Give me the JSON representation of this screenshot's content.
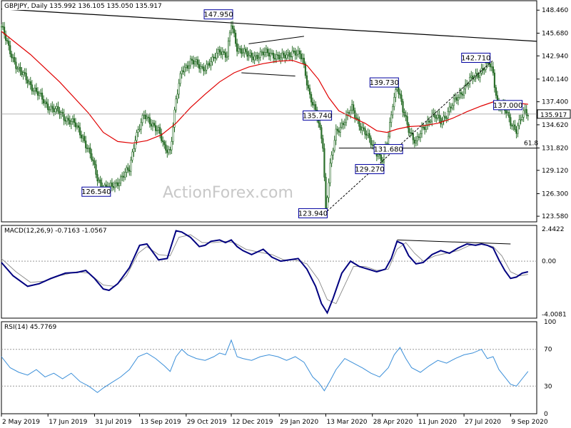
{
  "chart_data": [
    {
      "type": "candlestick",
      "title": "GBPJPY, Daily",
      "ohlc_readout": "135.992 136.105 135.050 135.917",
      "last_price": "135.917",
      "watermark": "ActionForex.com",
      "ylim": [
        122.9,
        149.6
      ],
      "y_ticks": [
        "148.460",
        "145.680",
        "142.940",
        "140.140",
        "137.400",
        "134.620",
        "131.820",
        "129.120",
        "126.300",
        "123.580"
      ],
      "x_ticks": [
        "2 May 2019",
        "17 Jun 2019",
        "31 Jul 2019",
        "13 Sep 2019",
        "29 Oct 2019",
        "12 Dec 2019",
        "29 Jan 2020",
        "13 Mar 2020",
        "28 Apr 2020",
        "11 Jun 2020",
        "27 Jul 2020",
        "9 Sep 2020"
      ],
      "x_tick_bar_index": [
        0,
        32,
        64,
        95,
        127,
        158,
        191,
        223,
        255,
        286,
        318,
        350
      ],
      "bar_count": 368,
      "price_points": [
        [
          0,
          146.5
        ],
        [
          5,
          143.8
        ],
        [
          12,
          141.2
        ],
        [
          20,
          139.5
        ],
        [
          30,
          137.2
        ],
        [
          40,
          136.0
        ],
        [
          50,
          134.7
        ],
        [
          56,
          133.2
        ],
        [
          62,
          130.5
        ],
        [
          66,
          128.2
        ],
        [
          70,
          127.1
        ],
        [
          74,
          126.9
        ],
        [
          79,
          127.6
        ],
        [
          84,
          128.5
        ],
        [
          88,
          129.2
        ],
        [
          92,
          133.2
        ],
        [
          98,
          135.6
        ],
        [
          104,
          134.8
        ],
        [
          108,
          133.8
        ],
        [
          112,
          131.8
        ],
        [
          116,
          131.6
        ],
        [
          120,
          137.5
        ],
        [
          124,
          141.2
        ],
        [
          130,
          142.3
        ],
        [
          138,
          141.5
        ],
        [
          145,
          142.2
        ],
        [
          150,
          143.8
        ],
        [
          155,
          142.9
        ],
        [
          158,
          146.7
        ],
        [
          162,
          144.0
        ],
        [
          166,
          143.5
        ],
        [
          170,
          142.8
        ],
        [
          178,
          143.1
        ],
        [
          185,
          143.3
        ],
        [
          192,
          142.6
        ],
        [
          200,
          143.5
        ],
        [
          207,
          142.6
        ],
        [
          212,
          138.2
        ],
        [
          217,
          135.5
        ],
        [
          221,
          132.3
        ],
        [
          223,
          124.5
        ],
        [
          226,
          129.6
        ],
        [
          230,
          133.6
        ],
        [
          236,
          135.3
        ],
        [
          241,
          136.5
        ],
        [
          246,
          134.8
        ],
        [
          252,
          133.0
        ],
        [
          258,
          131.4
        ],
        [
          262,
          130.2
        ],
        [
          266,
          133.2
        ],
        [
          269,
          137.4
        ],
        [
          272,
          139.4
        ],
        [
          276,
          136.2
        ],
        [
          280,
          134.2
        ],
        [
          285,
          132.4
        ],
        [
          290,
          134.2
        ],
        [
          296,
          135.8
        ],
        [
          302,
          135.0
        ],
        [
          308,
          136.5
        ],
        [
          314,
          138.0
        ],
        [
          320,
          139.6
        ],
        [
          326,
          140.5
        ],
        [
          330,
          141.3
        ],
        [
          335,
          142.0
        ],
        [
          338,
          140.8
        ],
        [
          341,
          137.2
        ],
        [
          345,
          136.7
        ],
        [
          350,
          134.9
        ],
        [
          354,
          134.1
        ],
        [
          357,
          135.3
        ],
        [
          360,
          136.1
        ],
        [
          362,
          135.9
        ]
      ],
      "ma_points": [
        [
          0,
          145.9
        ],
        [
          20,
          143.1
        ],
        [
          40,
          139.8
        ],
        [
          60,
          136.0
        ],
        [
          70,
          133.7
        ],
        [
          80,
          132.6
        ],
        [
          90,
          132.4
        ],
        [
          100,
          132.7
        ],
        [
          110,
          133.4
        ],
        [
          120,
          134.8
        ],
        [
          130,
          136.7
        ],
        [
          140,
          138.3
        ],
        [
          150,
          139.8
        ],
        [
          160,
          140.9
        ],
        [
          170,
          141.6
        ],
        [
          180,
          142.0
        ],
        [
          190,
          142.3
        ],
        [
          200,
          142.4
        ],
        [
          210,
          141.8
        ],
        [
          218,
          140.1
        ],
        [
          225,
          137.9
        ],
        [
          232,
          136.3
        ],
        [
          240,
          135.6
        ],
        [
          250,
          134.8
        ],
        [
          258,
          133.9
        ],
        [
          265,
          133.7
        ],
        [
          272,
          134.1
        ],
        [
          280,
          134.4
        ],
        [
          290,
          134.5
        ],
        [
          300,
          134.8
        ],
        [
          310,
          135.4
        ],
        [
          320,
          136.2
        ],
        [
          330,
          136.9
        ],
        [
          340,
          137.5
        ],
        [
          350,
          137.3
        ],
        [
          362,
          137.1
        ]
      ],
      "trendline_start": [
        0,
        148.6
      ],
      "trendline_end": [
        368,
        144.7
      ],
      "support_line": {
        "from_bar": 232,
        "to_bar": 368,
        "price": 131.8,
        "label": "61.8"
      },
      "swing_labels": [
        {
          "text": "147.950",
          "bar": 158,
          "price": 147.95,
          "pos": "left"
        },
        {
          "text": "126.540",
          "bar": 74,
          "price": 126.54,
          "pos": "left"
        },
        {
          "text": "123.940",
          "bar": 223,
          "price": 123.94,
          "pos": "left"
        },
        {
          "text": "135.740",
          "bar": 226,
          "price": 135.74,
          "pos": "left"
        },
        {
          "text": "139.730",
          "bar": 272,
          "price": 139.73,
          "pos": "left"
        },
        {
          "text": "129.270",
          "bar": 262,
          "price": 129.27,
          "pos": "left"
        },
        {
          "text": "131.680",
          "bar": 266,
          "price": 131.68,
          "pos": "center"
        },
        {
          "text": "142.710",
          "bar": 335,
          "price": 142.71,
          "pos": "left"
        },
        {
          "text": "137.000",
          "bar": 357,
          "price": 137.0,
          "pos": "left"
        }
      ],
      "channel_upper": [
        [
          170,
          144.4
        ],
        [
          208,
          145.3
        ]
      ],
      "channel_lower": [
        [
          165,
          140.9
        ],
        [
          202,
          140.5
        ]
      ],
      "dashed_channel_upper": [
        [
          287,
          135.2
        ],
        [
          338,
          142.4
        ]
      ],
      "dashed_channel_lower": [
        [
          224,
          124.2
        ],
        [
          262,
          129.4
        ]
      ]
    },
    {
      "type": "line",
      "title": "MACD(12,26,9) -0.7163 -1.0567",
      "ylim": [
        -4.3,
        2.7
      ],
      "y_ticks": [
        "2.4422",
        "0.00",
        "-4.0081"
      ],
      "macd_points": [
        [
          0,
          -0.1
        ],
        [
          8,
          -1.1
        ],
        [
          18,
          -1.9
        ],
        [
          26,
          -1.7
        ],
        [
          34,
          -1.3
        ],
        [
          44,
          -0.9
        ],
        [
          52,
          -0.85
        ],
        [
          58,
          -0.7
        ],
        [
          64,
          -1.3
        ],
        [
          70,
          -2.1
        ],
        [
          74,
          -2.2
        ],
        [
          80,
          -1.7
        ],
        [
          88,
          -0.5
        ],
        [
          95,
          1.2
        ],
        [
          100,
          1.3
        ],
        [
          108,
          0.1
        ],
        [
          114,
          0.2
        ],
        [
          120,
          2.3
        ],
        [
          124,
          2.2
        ],
        [
          130,
          1.8
        ],
        [
          136,
          1.1
        ],
        [
          140,
          1.2
        ],
        [
          144,
          1.5
        ],
        [
          150,
          1.6
        ],
        [
          154,
          1.4
        ],
        [
          158,
          1.6
        ],
        [
          162,
          1.1
        ],
        [
          166,
          0.8
        ],
        [
          172,
          0.5
        ],
        [
          180,
          0.9
        ],
        [
          186,
          0.3
        ],
        [
          192,
          0.0
        ],
        [
          198,
          0.1
        ],
        [
          204,
          0.2
        ],
        [
          210,
          -0.6
        ],
        [
          216,
          -1.9
        ],
        [
          220,
          -3.2
        ],
        [
          224,
          -3.9
        ],
        [
          228,
          -2.8
        ],
        [
          234,
          -0.9
        ],
        [
          240,
          0.0
        ],
        [
          246,
          -0.4
        ],
        [
          252,
          -0.6
        ],
        [
          258,
          -0.8
        ],
        [
          264,
          -0.6
        ],
        [
          268,
          0.2
        ],
        [
          272,
          1.5
        ],
        [
          276,
          1.3
        ],
        [
          280,
          0.4
        ],
        [
          285,
          -0.2
        ],
        [
          290,
          -0.1
        ],
        [
          296,
          0.5
        ],
        [
          302,
          0.8
        ],
        [
          308,
          0.6
        ],
        [
          314,
          1.0
        ],
        [
          320,
          1.3
        ],
        [
          326,
          1.2
        ],
        [
          330,
          1.3
        ],
        [
          334,
          1.2
        ],
        [
          338,
          1.0
        ],
        [
          342,
          0.1
        ],
        [
          346,
          -0.7
        ],
        [
          350,
          -1.3
        ],
        [
          354,
          -1.2
        ],
        [
          358,
          -0.9
        ],
        [
          362,
          -0.8
        ]
      ],
      "signal_points": [
        [
          0,
          0.2
        ],
        [
          10,
          -0.8
        ],
        [
          20,
          -1.6
        ],
        [
          30,
          -1.5
        ],
        [
          40,
          -1.1
        ],
        [
          52,
          -0.8
        ],
        [
          60,
          -0.9
        ],
        [
          70,
          -1.8
        ],
        [
          78,
          -1.9
        ],
        [
          86,
          -1.1
        ],
        [
          94,
          0.6
        ],
        [
          100,
          1.1
        ],
        [
          108,
          0.5
        ],
        [
          116,
          0.4
        ],
        [
          122,
          1.8
        ],
        [
          130,
          2.0
        ],
        [
          138,
          1.4
        ],
        [
          146,
          1.4
        ],
        [
          154,
          1.5
        ],
        [
          160,
          1.4
        ],
        [
          168,
          0.9
        ],
        [
          176,
          0.7
        ],
        [
          186,
          0.5
        ],
        [
          194,
          0.1
        ],
        [
          202,
          0.1
        ],
        [
          210,
          -0.2
        ],
        [
          218,
          -1.4
        ],
        [
          224,
          -2.9
        ],
        [
          230,
          -3.2
        ],
        [
          236,
          -1.8
        ],
        [
          242,
          -0.4
        ],
        [
          250,
          -0.4
        ],
        [
          258,
          -0.7
        ],
        [
          266,
          -0.6
        ],
        [
          272,
          0.9
        ],
        [
          278,
          1.4
        ],
        [
          284,
          0.6
        ],
        [
          290,
          0.0
        ],
        [
          298,
          0.4
        ],
        [
          306,
          0.6
        ],
        [
          314,
          0.8
        ],
        [
          322,
          1.2
        ],
        [
          330,
          1.3
        ],
        [
          338,
          1.1
        ],
        [
          344,
          0.4
        ],
        [
          350,
          -0.8
        ],
        [
          356,
          -1.1
        ],
        [
          362,
          -1.0
        ]
      ],
      "div_line_from": [
        272,
        1.6
      ],
      "div_line_to": [
        350,
        1.3
      ]
    },
    {
      "type": "line",
      "title": "RSI(14) 45.7769",
      "ylim": [
        0,
        100
      ],
      "y_ticks": [
        "100",
        "70",
        "30",
        "0"
      ],
      "rsi_points": [
        [
          0,
          62
        ],
        [
          6,
          50
        ],
        [
          12,
          45
        ],
        [
          18,
          42
        ],
        [
          24,
          48
        ],
        [
          30,
          40
        ],
        [
          36,
          44
        ],
        [
          42,
          38
        ],
        [
          48,
          44
        ],
        [
          54,
          35
        ],
        [
          60,
          30
        ],
        [
          66,
          23
        ],
        [
          70,
          28
        ],
        [
          76,
          34
        ],
        [
          82,
          40
        ],
        [
          88,
          48
        ],
        [
          94,
          62
        ],
        [
          100,
          66
        ],
        [
          106,
          60
        ],
        [
          112,
          52
        ],
        [
          116,
          46
        ],
        [
          120,
          62
        ],
        [
          124,
          70
        ],
        [
          128,
          64
        ],
        [
          134,
          60
        ],
        [
          140,
          58
        ],
        [
          146,
          62
        ],
        [
          150,
          66
        ],
        [
          154,
          64
        ],
        [
          158,
          80
        ],
        [
          162,
          62
        ],
        [
          166,
          60
        ],
        [
          172,
          58
        ],
        [
          178,
          62
        ],
        [
          184,
          64
        ],
        [
          190,
          62
        ],
        [
          196,
          58
        ],
        [
          202,
          62
        ],
        [
          208,
          56
        ],
        [
          214,
          40
        ],
        [
          218,
          34
        ],
        [
          222,
          25
        ],
        [
          226,
          36
        ],
        [
          230,
          48
        ],
        [
          236,
          60
        ],
        [
          242,
          55
        ],
        [
          248,
          50
        ],
        [
          254,
          44
        ],
        [
          260,
          40
        ],
        [
          266,
          50
        ],
        [
          270,
          64
        ],
        [
          274,
          72
        ],
        [
          278,
          60
        ],
        [
          282,
          50
        ],
        [
          288,
          45
        ],
        [
          294,
          52
        ],
        [
          300,
          58
        ],
        [
          306,
          55
        ],
        [
          312,
          60
        ],
        [
          318,
          64
        ],
        [
          324,
          66
        ],
        [
          330,
          70
        ],
        [
          334,
          60
        ],
        [
          338,
          62
        ],
        [
          342,
          48
        ],
        [
          346,
          40
        ],
        [
          350,
          32
        ],
        [
          354,
          30
        ],
        [
          358,
          38
        ],
        [
          362,
          46
        ]
      ]
    }
  ]
}
